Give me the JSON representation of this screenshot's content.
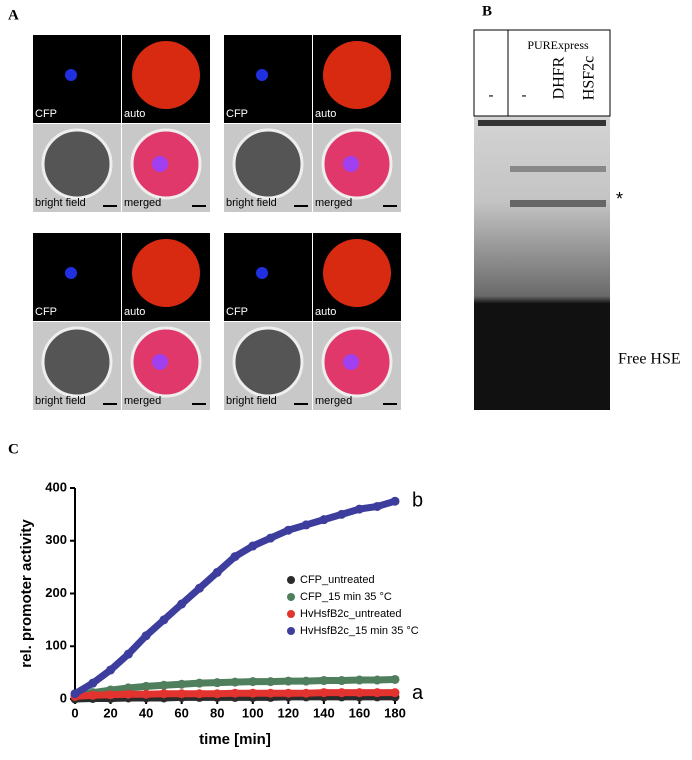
{
  "panel_labels": [
    "A",
    "B",
    "C"
  ],
  "microscopy": [
    {
      "labels": [
        "CFP",
        "auto",
        "bright field",
        "merged"
      ]
    },
    {
      "labels": [
        "CFP",
        "auto",
        "bright field",
        "merged"
      ]
    },
    {
      "labels": [
        "CFP",
        "auto",
        "bright field",
        "merged"
      ]
    },
    {
      "labels": [
        "CFP",
        "auto",
        "bright field",
        "merged"
      ]
    }
  ],
  "gel": {
    "header": "PURExpress",
    "lanes": [
      "-",
      "-",
      "DHFR",
      "HSF2c"
    ],
    "band_marker": "*",
    "free_label": "Free HSE"
  },
  "chart_data": {
    "type": "scatter",
    "x_label": "time [min]",
    "y_label": "rel. promoter activity",
    "x": [
      0,
      10,
      20,
      30,
      40,
      50,
      60,
      70,
      80,
      90,
      100,
      110,
      120,
      130,
      140,
      150,
      160,
      170,
      180
    ],
    "series": [
      {
        "name": "CFP_untreated",
        "color": "#2b2b2b",
        "values": [
          0,
          1,
          1,
          2,
          2,
          2,
          3,
          3,
          3,
          3,
          3,
          3,
          4,
          4,
          4,
          4,
          4,
          4,
          4
        ]
      },
      {
        "name": "CFP_15 min 35 °C",
        "color": "#4f7f5c",
        "values": [
          5,
          12,
          17,
          21,
          24,
          26,
          28,
          30,
          31,
          32,
          33,
          33,
          34,
          34,
          35,
          35,
          36,
          36,
          37
        ]
      },
      {
        "name": "HvHsfB2c_untreated",
        "color": "#e2332f",
        "values": [
          5,
          7,
          8,
          9,
          9,
          10,
          10,
          10,
          10,
          11,
          11,
          11,
          11,
          11,
          12,
          12,
          12,
          12,
          12
        ]
      },
      {
        "name": "HvHsfB2c_15 min 35 °C",
        "color": "#3d3d9e",
        "values": [
          10,
          30,
          55,
          85,
          120,
          150,
          180,
          210,
          240,
          270,
          290,
          305,
          320,
          330,
          340,
          350,
          360,
          365,
          375
        ]
      }
    ],
    "xlim": [
      0,
      180
    ],
    "xticks": [
      0,
      20,
      40,
      60,
      80,
      100,
      120,
      140,
      160,
      180
    ],
    "ylim": [
      0,
      400
    ],
    "yticks": [
      0,
      100,
      200,
      300,
      400
    ],
    "annotations": [
      {
        "text": "a",
        "x": 180,
        "y": 10
      },
      {
        "text": "b",
        "x": 180,
        "y": 375
      }
    ]
  }
}
